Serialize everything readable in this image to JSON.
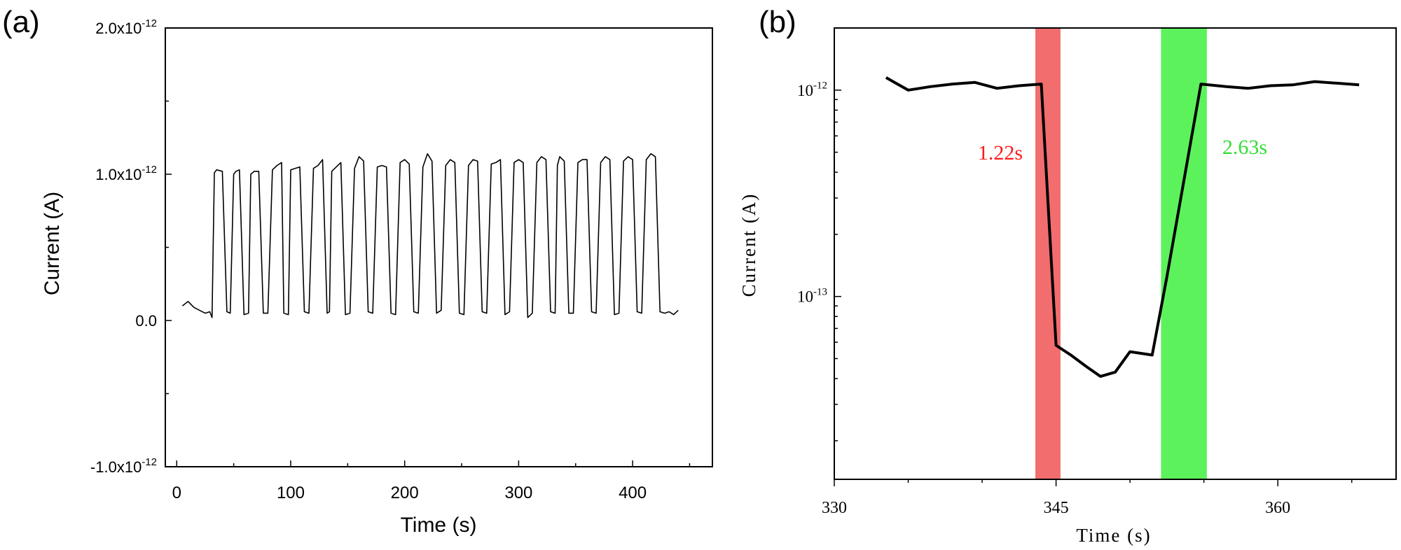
{
  "chart_data": [
    {
      "panel_label": "(a)",
      "type": "line",
      "xlabel": "Time (s)",
      "ylabel": "Current (A)",
      "xlim": [
        -10,
        470
      ],
      "ylim": [
        -1e-12,
        2e-12
      ],
      "x_ticks": [
        "0",
        "100",
        "200",
        "300",
        "400"
      ],
      "y_ticks": [
        "2.0x10-12",
        "1.0x10-12",
        "0.0",
        "-1.0x10-12"
      ],
      "grid": false,
      "legend": "none",
      "series": [
        {
          "color": "#000000",
          "x": [
            5,
            10,
            15,
            20,
            25,
            29,
            31,
            33,
            35,
            40,
            44,
            47,
            50,
            52,
            55,
            59,
            63,
            65,
            68,
            72,
            76,
            80,
            84,
            88,
            92,
            94,
            98,
            100,
            104,
            108,
            112,
            116,
            120,
            124,
            128,
            132,
            134,
            136,
            140,
            144,
            148,
            152,
            156,
            160,
            164,
            168,
            172,
            176,
            180,
            184,
            188,
            192,
            196,
            200,
            204,
            208,
            212,
            216,
            220,
            224,
            228,
            232,
            236,
            240,
            244,
            248,
            252,
            256,
            260,
            264,
            268,
            272,
            276,
            280,
            284,
            288,
            292,
            296,
            300,
            304,
            308,
            312,
            316,
            320,
            324,
            328,
            332,
            334,
            336,
            340,
            344,
            348,
            352,
            356,
            360,
            364,
            368,
            372,
            376,
            380,
            384,
            388,
            392,
            396,
            400,
            404,
            408,
            412,
            416,
            420,
            424,
            428,
            432,
            436,
            440
          ],
          "y": [
            1e-13,
            1.3e-13,
            9e-14,
            7e-14,
            5e-14,
            6e-14,
            2e-14,
            1.01e-12,
            1.03e-12,
            1.02e-12,
            6e-14,
            5e-14,
            1e-12,
            1.02e-12,
            1.03e-12,
            4e-14,
            5e-14,
            1e-12,
            1.02e-12,
            1.02e-12,
            5e-14,
            5e-14,
            1.03e-12,
            1.06e-12,
            1.08e-12,
            5e-14,
            4e-14,
            1.03e-12,
            1.04e-12,
            1.05e-12,
            6e-14,
            5e-14,
            1.04e-12,
            1.06e-12,
            1.1e-12,
            5e-14,
            6e-14,
            1.02e-12,
            1.05e-12,
            1.08e-12,
            4e-14,
            5e-14,
            1.04e-12,
            1.12e-12,
            1.09e-12,
            6e-14,
            5e-14,
            1.05e-12,
            1.06e-12,
            1.05e-12,
            5e-14,
            4e-14,
            1.08e-12,
            1.1e-12,
            1.07e-12,
            6e-14,
            5e-14,
            1.05e-12,
            1.14e-12,
            1.09e-12,
            5e-14,
            7e-14,
            1.06e-12,
            1.1e-12,
            1.08e-12,
            5e-14,
            4e-14,
            1.06e-12,
            1.1e-12,
            1.09e-12,
            6e-14,
            5e-14,
            1.07e-12,
            1.08e-12,
            1.1e-12,
            4e-14,
            6e-14,
            1.08e-12,
            1.1e-12,
            1.08e-12,
            2e-14,
            5e-14,
            1.08e-12,
            1.12e-12,
            1.1e-12,
            6e-14,
            5e-14,
            1.06e-12,
            1.12e-12,
            1.09e-12,
            5e-14,
            5e-14,
            1.08e-12,
            1.1e-12,
            1.1e-12,
            6e-14,
            5e-14,
            1.08e-12,
            1.12e-12,
            1.1e-12,
            4e-14,
            5e-14,
            1.09e-12,
            1.12e-12,
            1.1e-12,
            6e-14,
            5e-14,
            1.1e-12,
            1.14e-12,
            1.12e-12,
            6e-14,
            5e-14,
            6e-14,
            4e-14,
            7e-14
          ]
        }
      ]
    },
    {
      "panel_label": "(b)",
      "type": "line",
      "xlabel": "Time (s)",
      "ylabel": "Current (A)",
      "xlim": [
        330,
        368
      ],
      "ylim": [
        1.3e-14,
        2e-12
      ],
      "y_scale": "log",
      "x_ticks": [
        "330",
        "345",
        "360"
      ],
      "y_ticks": [
        "10-12",
        "10-13"
      ],
      "grid": false,
      "legend": "none",
      "bands": [
        {
          "x0": 343.6,
          "x1": 345.3,
          "color": "#f26d6d",
          "label": "1.22s",
          "label_color": "#ff1a1a"
        },
        {
          "x0": 352.1,
          "x1": 355.2,
          "color": "#5cf25c",
          "label": "2.63s",
          "label_color": "#33dd33"
        }
      ],
      "series": [
        {
          "color": "#000000",
          "x": [
            333.5,
            335,
            336.5,
            338,
            339.5,
            341,
            342.5,
            344,
            345,
            346,
            347,
            348,
            349,
            350,
            351.5,
            352.5,
            354.8,
            356.5,
            358,
            359.5,
            361,
            362.5,
            364,
            365.5
          ],
          "y": [
            1.15e-12,
            1e-12,
            1.04e-12,
            1.07e-12,
            1.09e-12,
            1.02e-12,
            1.05e-12,
            1.07e-12,
            5.8e-14,
            5.2e-14,
            4.6e-14,
            4.1e-14,
            4.3e-14,
            5.4e-14,
            5.2e-14,
            1.25e-13,
            1.07e-12,
            1.04e-12,
            1.02e-12,
            1.05e-12,
            1.06e-12,
            1.1e-12,
            1.08e-12,
            1.06e-12
          ]
        }
      ]
    }
  ]
}
